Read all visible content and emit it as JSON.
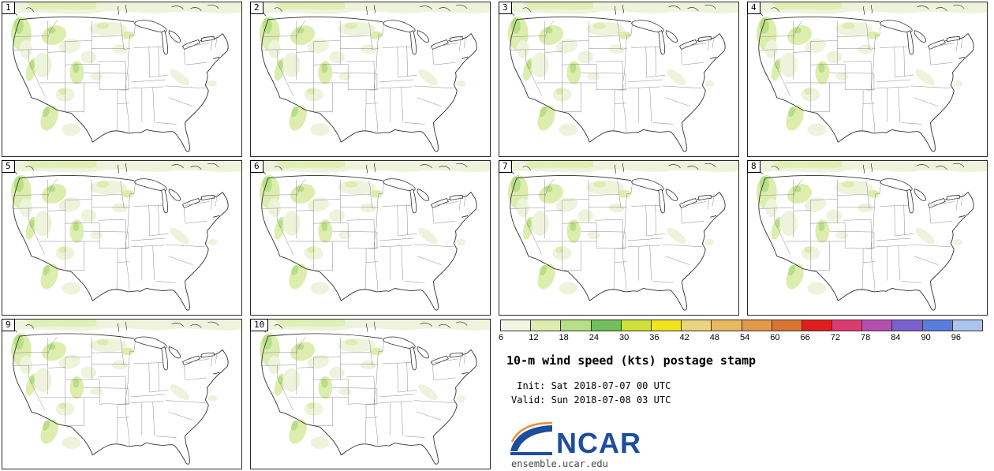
{
  "panels": [
    {
      "label": "1"
    },
    {
      "label": "2"
    },
    {
      "label": "3"
    },
    {
      "label": "4"
    },
    {
      "label": "5"
    },
    {
      "label": "6"
    },
    {
      "label": "7"
    },
    {
      "label": "8"
    },
    {
      "label": "9"
    },
    {
      "label": "10"
    }
  ],
  "chart_data": {
    "type": "heatmap",
    "title": "10-m wind speed (kts) postage stamp",
    "legend_ticks": [
      6,
      12,
      18,
      24,
      30,
      36,
      42,
      48,
      54,
      60,
      66,
      72,
      78,
      84,
      90,
      96
    ],
    "units": "kts",
    "members": 10,
    "legend_position": "bottom-right"
  },
  "legend": {
    "ticks": [
      "6",
      "12",
      "18",
      "24",
      "30",
      "36",
      "42",
      "48",
      "54",
      "60",
      "66",
      "72",
      "78",
      "84",
      "90",
      "96"
    ],
    "colors": [
      "#f2f4e4",
      "#dcedae",
      "#b6df86",
      "#72c05c",
      "#cfe03a",
      "#f2e41c",
      "#ecd47f",
      "#e5ba60",
      "#e2994a",
      "#da7430",
      "#e01e1e",
      "#de3a72",
      "#b44fb0",
      "#7c60ce",
      "#5a7ce0",
      "#aac6ee"
    ]
  },
  "caption": {
    "title": "10-m wind speed (kts) postage stamp",
    "init_line": " Init: Sat 2018-07-07 00 UTC",
    "valid_line": "Valid: Sun 2018-07-08 03 UTC"
  },
  "footer": {
    "logo_text": "NCAR",
    "url": "ensemble.ucar.edu"
  },
  "colors": {
    "logo_blue": "#1c4e9e",
    "logo_orange": "#f08a2c",
    "shade_light": "#eef3dc",
    "shade_mid": "#dcedae",
    "shade_dark": "#b6df86"
  }
}
